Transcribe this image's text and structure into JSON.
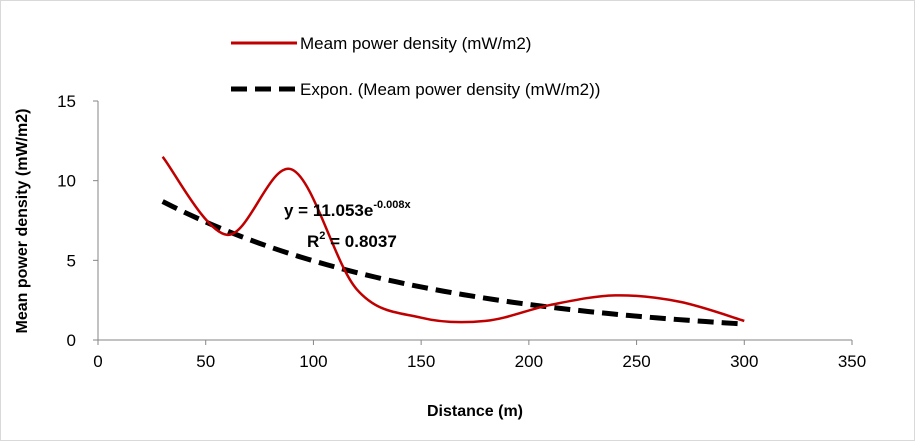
{
  "chart_data": {
    "type": "line",
    "x": [
      30,
      60,
      90,
      120,
      150,
      180,
      210,
      240,
      270,
      300
    ],
    "series": [
      {
        "name": "Meam power density (mW/m2)",
        "style": "smooth-solid",
        "color": "#c00000",
        "values": [
          11.5,
          6.6,
          10.7,
          3.2,
          1.4,
          1.2,
          2.2,
          2.8,
          2.4,
          1.2
        ]
      },
      {
        "name": "Expon. (Meam power density (mW/m2))",
        "style": "dashed",
        "color": "#000000",
        "trendline": {
          "type": "exponential",
          "a": 11.053,
          "b": -0.008
        }
      }
    ],
    "xlabel": "Distance (m)",
    "ylabel": "Mean power density (mW/m2)",
    "xlim": [
      0,
      350
    ],
    "ylim": [
      0,
      15
    ],
    "xticks": [
      "0",
      "50",
      "100",
      "150",
      "200",
      "250",
      "300",
      "350"
    ],
    "yticks": [
      "0",
      "5",
      "10",
      "15"
    ],
    "grid": false,
    "legend_position": "top",
    "annotations": {
      "equation_prefix": "y = 11.053e",
      "equation_exponent": "-0.008x",
      "r2_prefix": "R",
      "r2_sup": "2",
      "r2_value": " = 0.8037"
    }
  }
}
